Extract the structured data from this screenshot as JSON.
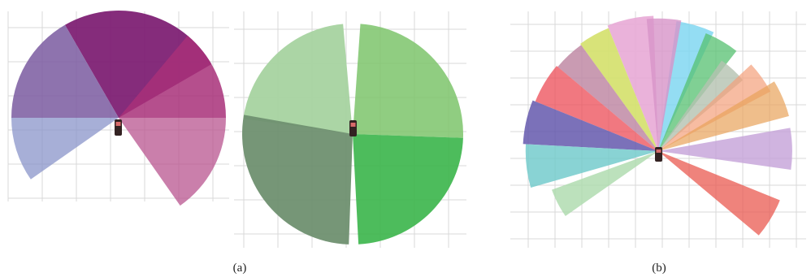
{
  "figure": {
    "panels": [
      {
        "id": "a",
        "label": "(a)"
      },
      {
        "id": "b",
        "label": "(b)"
      }
    ]
  },
  "diagrams": [
    {
      "name": "a-left",
      "sectors": [
        {
          "from_deg": 30,
          "to_deg": 120,
          "color": "#7b1a70",
          "opacity": 0.92
        },
        {
          "from_deg": 0,
          "to_deg": 50,
          "color": "#a83079",
          "opacity": 0.85
        },
        {
          "from_deg": -55,
          "to_deg": 0,
          "color": "#b8548f",
          "opacity": 0.75
        },
        {
          "from_deg": 120,
          "to_deg": 180,
          "color": "#7a5aa0",
          "opacity": 0.85
        },
        {
          "from_deg": 180,
          "to_deg": 215,
          "color": "#8a94c9",
          "opacity": 0.75
        }
      ]
    },
    {
      "name": "a-middle",
      "sectors": [
        {
          "from_deg": 95,
          "to_deg": 172,
          "color": "#a7d3a0",
          "opacity": 0.95
        },
        {
          "from_deg": -2,
          "to_deg": 86,
          "color": "#7cc46b",
          "opacity": 0.85
        },
        {
          "from_deg": 170,
          "to_deg": 268,
          "color": "#6f9070",
          "opacity": 0.95
        },
        {
          "from_deg": 273,
          "to_deg": 358,
          "color": "#3ab54a",
          "opacity": 0.9
        }
      ]
    },
    {
      "name": "b",
      "sectors": [
        {
          "from_deg": 65,
          "to_deg": 82,
          "color": "#79d5f0",
          "opacity": 0.8
        },
        {
          "from_deg": 52,
          "to_deg": 68,
          "color": "#55c070",
          "opacity": 0.75
        },
        {
          "from_deg": 40,
          "to_deg": 55,
          "color": "#b4c2b0",
          "opacity": 0.8
        },
        {
          "from_deg": 28,
          "to_deg": 43,
          "color": "#f4a07a",
          "opacity": 0.7
        },
        {
          "from_deg": 15,
          "to_deg": 31,
          "color": "#e8a25a",
          "opacity": 0.7
        },
        {
          "from_deg": -8,
          "to_deg": 10,
          "color": "#c4a1d8",
          "opacity": 0.8
        },
        {
          "from_deg": -40,
          "to_deg": -22,
          "color": "#ea5a50",
          "opacity": 0.75
        },
        {
          "from_deg": 92,
          "to_deg": 112,
          "color": "#e8aad6",
          "opacity": 0.9
        },
        {
          "from_deg": 80,
          "to_deg": 95,
          "color": "#d794c8",
          "opacity": 0.8
        },
        {
          "from_deg": 112,
          "to_deg": 126,
          "color": "#d4e06a",
          "opacity": 0.9
        },
        {
          "from_deg": 126,
          "to_deg": 140,
          "color": "#c08aa5",
          "opacity": 0.85
        },
        {
          "from_deg": 140,
          "to_deg": 158,
          "color": "#ec4b56",
          "opacity": 0.75
        },
        {
          "from_deg": 158,
          "to_deg": 177,
          "color": "#5a4ea8",
          "opacity": 0.8
        },
        {
          "from_deg": 177,
          "to_deg": 196,
          "color": "#6cc8c9",
          "opacity": 0.8
        },
        {
          "from_deg": 200,
          "to_deg": 215,
          "color": "#abd9ab",
          "opacity": 0.8
        }
      ]
    }
  ]
}
